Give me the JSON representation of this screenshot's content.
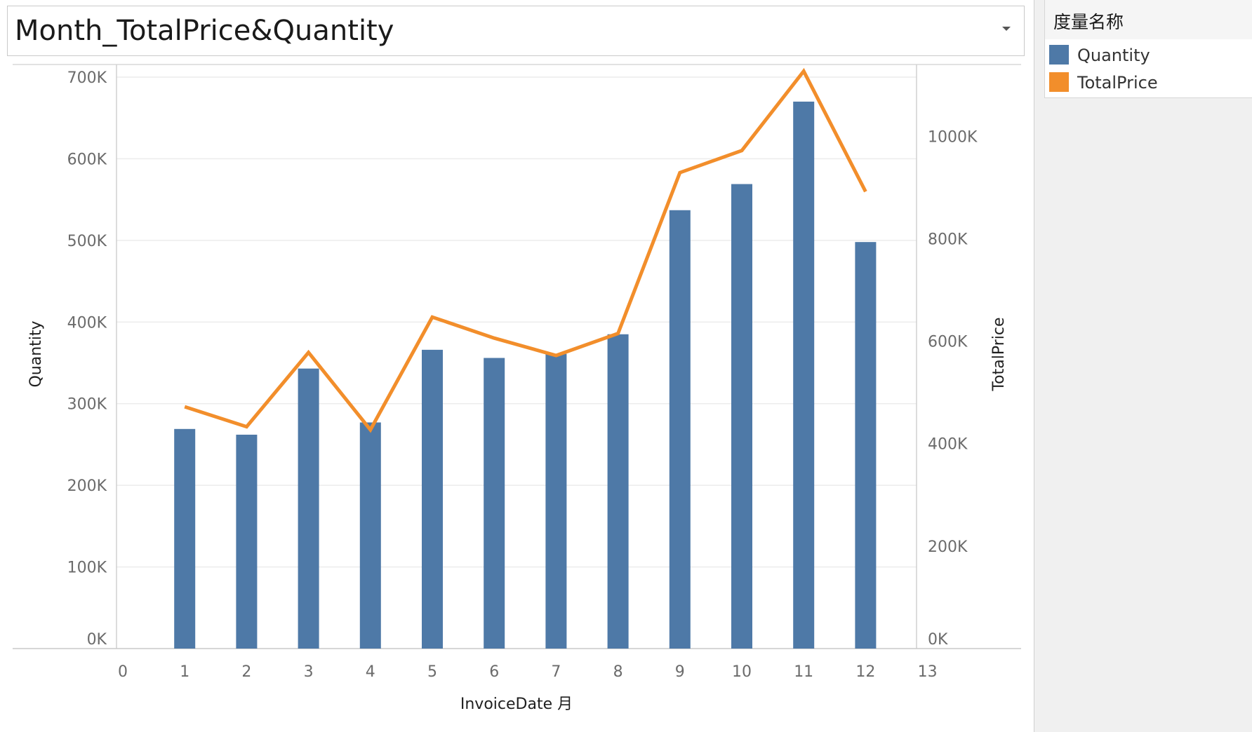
{
  "header": {
    "title": "Month_TotalPrice&Quantity",
    "dropdown_icon": "chevron-down-icon"
  },
  "legend": {
    "title": "度量名称",
    "items": [
      {
        "label": "Quantity",
        "color": "#4e79a7"
      },
      {
        "label": "TotalPrice",
        "color": "#f28e2b"
      }
    ]
  },
  "chart_data": {
    "type": "bar",
    "xlabel": "InvoiceDate 月",
    "x_ticks": [
      "0",
      "1",
      "2",
      "3",
      "4",
      "5",
      "6",
      "7",
      "8",
      "9",
      "10",
      "11",
      "12",
      "13"
    ],
    "xlim": [
      0,
      13
    ],
    "categories": [
      1,
      2,
      3,
      4,
      5,
      6,
      7,
      8,
      9,
      10,
      11,
      12
    ],
    "grid": true,
    "legend_position": "top-right",
    "series": [
      {
        "name": "Quantity",
        "type": "bar",
        "axis": "left",
        "color": "#4e79a7",
        "values": [
          269000,
          262000,
          343000,
          277000,
          366000,
          356000,
          361000,
          385000,
          537000,
          569000,
          670000,
          498000
        ]
      },
      {
        "name": "TotalPrice",
        "type": "line",
        "axis": "right",
        "color": "#f28e2b",
        "values": [
          472000,
          433000,
          578000,
          427000,
          647000,
          606000,
          572000,
          615000,
          929000,
          972000,
          1127000,
          892000
        ]
      }
    ],
    "y_left": {
      "label": "Quantity",
      "ylim": [
        0,
        700000
      ],
      "ticks": [
        0,
        100000,
        200000,
        300000,
        400000,
        500000,
        600000,
        700000
      ],
      "tick_labels": [
        "0K",
        "100K",
        "200K",
        "300K",
        "400K",
        "500K",
        "600K",
        "700K"
      ]
    },
    "y_right": {
      "label": "TotalPrice",
      "ylim": [
        0,
        1140000
      ],
      "ticks": [
        0,
        200000,
        400000,
        600000,
        800000,
        1000000
      ],
      "tick_labels": [
        "0K",
        "200K",
        "400K",
        "600K",
        "800K",
        "1000K"
      ]
    }
  }
}
